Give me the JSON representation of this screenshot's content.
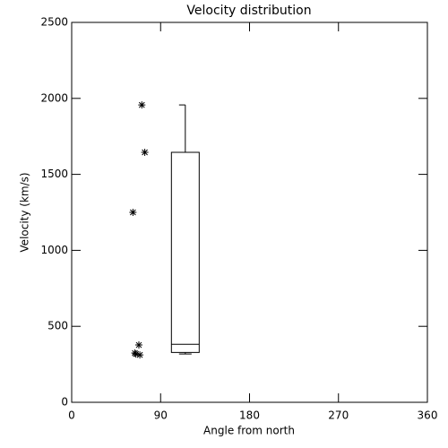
{
  "chart_data": {
    "type": "scatter-box",
    "title": "Velocity distribution",
    "x_label": "Angle from north",
    "y_label": "Velocity (km/s)",
    "x": [
      71,
      74,
      62,
      68,
      64,
      65,
      69
    ],
    "values": [
      1957,
      1645,
      1250,
      377,
      324,
      318,
      312
    ],
    "marker": "asterisk",
    "color": "#000000",
    "box": {
      "x": 115,
      "low": 318,
      "q1": 328,
      "median": 382,
      "q3": 1645,
      "high": 1957
    },
    "xlim": [
      0,
      360
    ],
    "xticks": [
      0,
      90,
      180,
      270,
      360
    ],
    "ylim": [
      0,
      2500
    ],
    "yticks": [
      0,
      500,
      1000,
      1500,
      2000,
      2500
    ]
  }
}
